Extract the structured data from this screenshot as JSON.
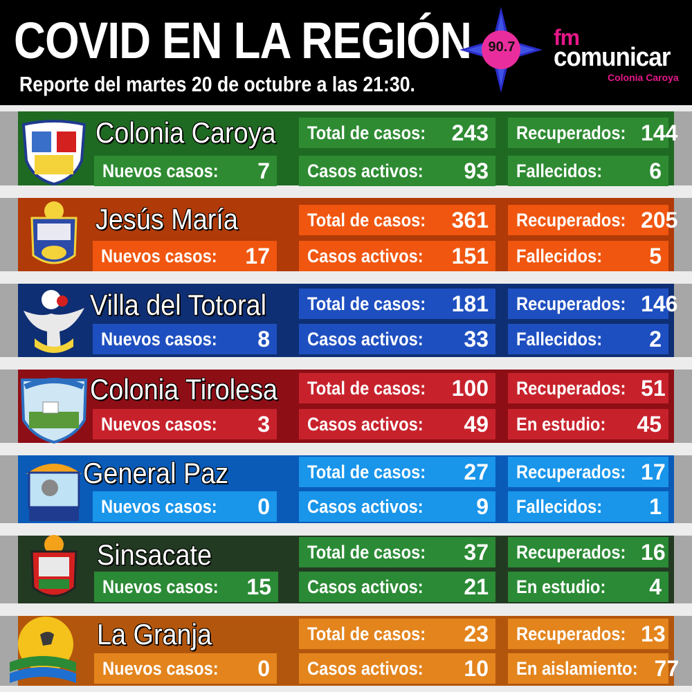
{
  "header": {
    "title": "COVID EN LA REGIÓN",
    "subtitle": "Reporte del martes 20 de octubre a las 21:30.",
    "logo": {
      "frequency": "90.7",
      "fm": "fm",
      "brand": "comunicar",
      "location": "Colonia Caroya"
    }
  },
  "towns": [
    {
      "name": "Colonia Caroya",
      "colors": {
        "band": "#1f6a22",
        "box": "#2e8b32"
      },
      "crest_icon": "colonia-caroya-crest-icon",
      "new_cases_label": "Nuevos casos:",
      "new_cases": "7",
      "total_label": "Total de casos:",
      "total": "243",
      "active_label": "Casos activos:",
      "active": "93",
      "third_label": "Recuperados:",
      "third": "144",
      "fourth_label": "Fallecidos:",
      "fourth": "6"
    },
    {
      "name": "Jesús María",
      "colors": {
        "band": "#b03a08",
        "box": "#f0560f"
      },
      "crest_icon": "jesus-maria-crest-icon",
      "new_cases_label": "Nuevos casos:",
      "new_cases": "17",
      "total_label": "Total de casos:",
      "total": "361",
      "active_label": "Casos activos:",
      "active": "151",
      "third_label": "Recuperados:",
      "third": "205",
      "fourth_label": "Fallecidos:",
      "fourth": "5"
    },
    {
      "name": "Villa del Totoral",
      "colors": {
        "band": "#0f2f74",
        "box": "#1e4fc0"
      },
      "crest_icon": "villa-del-totoral-crest-icon",
      "new_cases_label": "Nuevos casos:",
      "new_cases": "8",
      "total_label": "Total de casos:",
      "total": "181",
      "active_label": "Casos activos:",
      "active": "33",
      "third_label": "Recuperados:",
      "third": "146",
      "fourth_label": "Fallecidos:",
      "fourth": "2"
    },
    {
      "name": "Colonia Tirolesa",
      "colors": {
        "band": "#8e0e16",
        "box": "#c7222c"
      },
      "crest_icon": "colonia-tirolesa-crest-icon",
      "new_cases_label": "Nuevos casos:",
      "new_cases": "3",
      "total_label": "Total de casos:",
      "total": "100",
      "active_label": "Casos activos:",
      "active": "49",
      "third_label": "Recuperados:",
      "third": "51",
      "fourth_label": "En estudio:",
      "fourth": "45"
    },
    {
      "name": "General Paz",
      "colors": {
        "band": "#0a5bb8",
        "box": "#1995ea"
      },
      "crest_icon": "general-paz-crest-icon",
      "new_cases_label": "Nuevos casos:",
      "new_cases": "0",
      "total_label": "Total de casos:",
      "total": "27",
      "active_label": "Casos activos:",
      "active": "9",
      "third_label": "Recuperados:",
      "third": "17",
      "fourth_label": "Fallecidos:",
      "fourth": "1"
    },
    {
      "name": "Sinsacate",
      "colors": {
        "band": "#233a22",
        "box": "#2b8a35"
      },
      "crest_icon": "sinsacate-crest-icon",
      "new_cases_label": "Nuevos casos:",
      "new_cases": "15",
      "total_label": "Total de casos:",
      "total": "37",
      "active_label": "Casos activos:",
      "active": "21",
      "third_label": "Recuperados:",
      "third": "16",
      "fourth_label": "En estudio:",
      "fourth": "4"
    },
    {
      "name": "La Granja",
      "colors": {
        "band": "#b3560d",
        "box": "#e3841d"
      },
      "crest_icon": "la-granja-crest-icon",
      "new_cases_label": "Nuevos casos:",
      "new_cases": "0",
      "total_label": "Total de casos:",
      "total": "23",
      "active_label": "Casos activos:",
      "active": "10",
      "third_label": "Recuperados:",
      "third": "13",
      "fourth_label": "En aislamiento:",
      "fourth": "77"
    }
  ]
}
